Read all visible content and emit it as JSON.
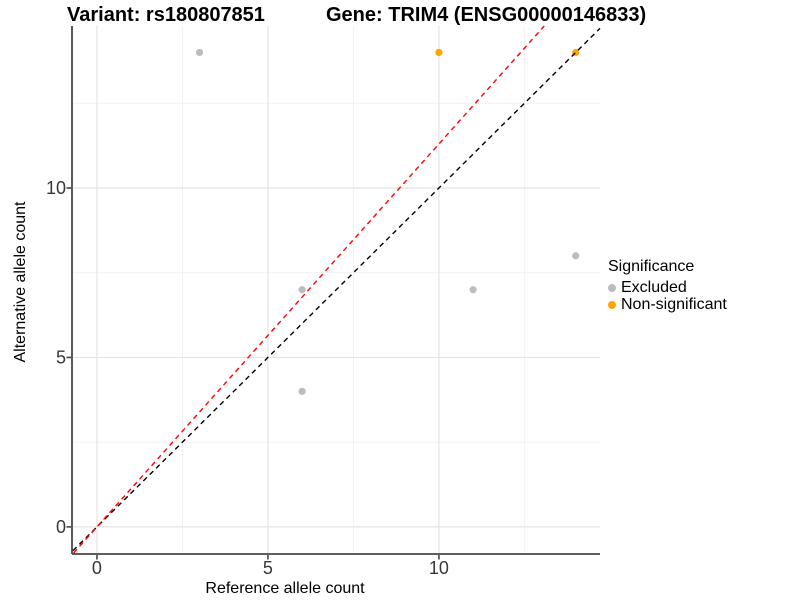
{
  "titles": {
    "variant": "Variant: rs180807851",
    "gene": "Gene: TRIM4 (ENSG00000146833)"
  },
  "legend": {
    "title": "Significance",
    "items": [
      {
        "label": "Excluded",
        "color": "#bdbdbd"
      },
      {
        "label": "Non-significant",
        "color": "#ffa500"
      }
    ]
  },
  "colors": {
    "grid_major": "#e4e4e4",
    "grid_minor": "#f2f2f2",
    "axis_line": "#474747",
    "tick_label": "#383838",
    "point_excluded": "#bdbdbd",
    "point_nonsignificant": "#ffa500",
    "identity_line": "#000000",
    "fit_line": "#ff0000"
  },
  "chart_data": {
    "type": "scatter",
    "title": "Variant: rs180807851 — Gene: TRIM4 (ENSG00000146833)",
    "xlabel": "Reference allele count",
    "ylabel": "Alternative allele count",
    "xlim": [
      -0.7,
      14.71
    ],
    "ylim": [
      -0.77,
      14.78
    ],
    "xticks": [
      0,
      5,
      10
    ],
    "yticks": [
      0,
      5,
      10
    ],
    "minor_ticks": [
      2.5,
      7.5,
      12.5
    ],
    "grid": true,
    "legend_position": "right",
    "series": [
      {
        "name": "Excluded",
        "color": "#bdbdbd",
        "points": [
          [
            3,
            14
          ],
          [
            6,
            7
          ],
          [
            6,
            4
          ],
          [
            11,
            7
          ],
          [
            14,
            8
          ]
        ]
      },
      {
        "name": "Non-significant",
        "color": "#ffa500",
        "points": [
          [
            10,
            14
          ],
          [
            14,
            14
          ]
        ]
      }
    ],
    "reference_lines": [
      {
        "name": "identity-line",
        "color": "#000000",
        "slope": 1,
        "intercept": 0,
        "style": "dashed"
      },
      {
        "name": "fit-line",
        "color": "#ff0000",
        "slope": 1.13,
        "intercept": 0,
        "style": "dashed"
      }
    ]
  }
}
